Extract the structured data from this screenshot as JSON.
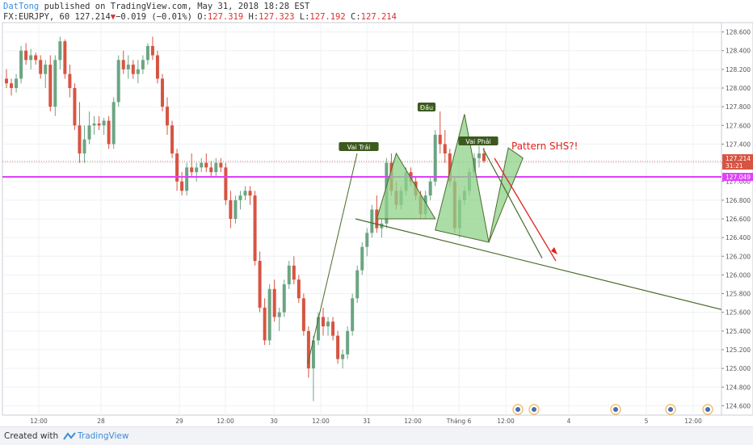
{
  "header": {
    "author": "DatTong",
    "published": "published on TradingView.com, May 31, 2018 18:28 EST",
    "symbol": "FX:EURJPY, 60",
    "last": "127.214",
    "change": "▼",
    "change_text": "−0.019 (−0.01%)",
    "o_label": "O:",
    "o_value": "127.319",
    "h_label": "H:",
    "h_value": "127.323",
    "l_label": "L:",
    "l_value": "127.192",
    "c_label": "C:",
    "c_value": "127.214"
  },
  "footer": {
    "created_with": "Created with",
    "brand": "TradingView"
  },
  "colors": {
    "up": "#6ba583",
    "down": "#d75442",
    "magenta": "#e040fb",
    "pattern_fill": "#8fd18a",
    "pattern_line": "#4a6b2a",
    "arrow": "#e0201c"
  },
  "chart_data": {
    "type": "candlestick",
    "ylim": [
      124.5,
      128.7
    ],
    "y_ticks": [
      "128.600",
      "128.400",
      "128.200",
      "128.000",
      "127.800",
      "127.600",
      "127.400",
      "127.200",
      "127.000",
      "126.800",
      "126.600",
      "126.400",
      "126.200",
      "126.000",
      "125.800",
      "125.600",
      "125.400",
      "125.200",
      "125.000",
      "124.800",
      "124.600"
    ],
    "x_ticks": [
      "12:00",
      "28",
      "29",
      "12:00",
      "30",
      "12:00",
      "31",
      "12:00",
      "Tháng 6",
      "12:00",
      "4",
      "5",
      "12:00"
    ],
    "price_labels": [
      "127.214",
      "31:21",
      "127.049"
    ],
    "horizontal_line": 127.049,
    "annotations": {
      "left_shoulder": "Vai Trái",
      "head": "Đầu",
      "right_shoulder": "Vai Phải",
      "pattern_text": "Pattern SHS?!"
    },
    "pattern_points": [
      [
        127.3,
        126.6
      ],
      [
        126.48,
        127.72
      ],
      [
        126.35,
        127.36
      ]
    ],
    "neckline": [
      126.6,
      125.63
    ],
    "candles": [
      [
        128.1,
        128.2,
        128.0,
        128.05
      ],
      [
        128.05,
        128.1,
        127.92,
        128.0
      ],
      [
        128.0,
        128.15,
        127.95,
        128.1
      ],
      [
        128.1,
        128.45,
        128.05,
        128.4
      ],
      [
        128.4,
        128.48,
        128.25,
        128.3
      ],
      [
        128.3,
        128.42,
        128.2,
        128.35
      ],
      [
        128.35,
        128.38,
        128.25,
        128.3
      ],
      [
        128.3,
        128.35,
        128.1,
        128.15
      ],
      [
        128.15,
        128.3,
        128.0,
        128.25
      ],
      [
        128.25,
        128.35,
        127.75,
        127.8
      ],
      [
        127.8,
        128.35,
        127.7,
        128.3
      ],
      [
        128.3,
        128.55,
        128.2,
        128.5
      ],
      [
        128.5,
        128.52,
        128.1,
        128.15
      ],
      [
        128.15,
        128.25,
        127.9,
        128.0
      ],
      [
        128.0,
        128.05,
        127.55,
        127.6
      ],
      [
        127.6,
        127.85,
        127.2,
        127.3
      ],
      [
        127.3,
        127.6,
        127.2,
        127.45
      ],
      [
        127.45,
        127.75,
        127.4,
        127.6
      ],
      [
        127.6,
        127.7,
        127.5,
        127.62
      ],
      [
        127.62,
        127.7,
        127.55,
        127.6
      ],
      [
        127.6,
        127.68,
        127.5,
        127.65
      ],
      [
        127.65,
        127.7,
        127.35,
        127.4
      ],
      [
        127.4,
        127.9,
        127.35,
        127.85
      ],
      [
        127.85,
        128.35,
        127.8,
        128.3
      ],
      [
        128.3,
        128.4,
        128.15,
        128.2
      ],
      [
        128.2,
        128.35,
        128.1,
        128.25
      ],
      [
        128.25,
        128.3,
        128.1,
        128.15
      ],
      [
        128.15,
        128.3,
        128.05,
        128.2
      ],
      [
        128.2,
        128.35,
        128.15,
        128.3
      ],
      [
        128.3,
        128.48,
        128.25,
        128.45
      ],
      [
        128.45,
        128.55,
        128.3,
        128.35
      ],
      [
        128.35,
        128.4,
        128.05,
        128.1
      ],
      [
        128.1,
        128.15,
        127.75,
        127.8
      ],
      [
        127.8,
        127.9,
        127.5,
        127.6
      ],
      [
        127.6,
        127.65,
        127.25,
        127.3
      ],
      [
        127.3,
        127.35,
        126.9,
        127.0
      ],
      [
        127.0,
        127.1,
        126.85,
        126.9
      ],
      [
        126.9,
        127.2,
        126.85,
        127.15
      ],
      [
        127.15,
        127.3,
        127.05,
        127.1
      ],
      [
        127.1,
        127.2,
        127.0,
        127.15
      ],
      [
        127.15,
        127.25,
        127.1,
        127.2
      ],
      [
        127.2,
        127.3,
        127.1,
        127.15
      ],
      [
        127.15,
        127.22,
        127.05,
        127.1
      ],
      [
        127.1,
        127.25,
        127.05,
        127.2
      ],
      [
        127.2,
        127.25,
        127.1,
        127.15
      ],
      [
        127.15,
        127.2,
        126.75,
        126.8
      ],
      [
        126.8,
        126.9,
        126.5,
        126.6
      ],
      [
        126.6,
        126.85,
        126.55,
        126.8
      ],
      [
        126.8,
        126.9,
        126.7,
        126.85
      ],
      [
        126.85,
        126.95,
        126.8,
        126.9
      ],
      [
        126.9,
        126.95,
        126.75,
        126.85
      ],
      [
        126.85,
        126.9,
        126.1,
        126.15
      ],
      [
        126.15,
        126.25,
        125.6,
        125.65
      ],
      [
        125.65,
        125.75,
        125.25,
        125.3
      ],
      [
        125.3,
        125.9,
        125.25,
        125.85
      ],
      [
        125.85,
        125.95,
        125.5,
        125.55
      ],
      [
        125.55,
        125.65,
        125.4,
        125.6
      ],
      [
        125.6,
        125.95,
        125.55,
        125.9
      ],
      [
        125.9,
        126.15,
        125.85,
        126.1
      ],
      [
        126.1,
        126.2,
        125.9,
        125.95
      ],
      [
        125.95,
        126.0,
        125.7,
        125.75
      ],
      [
        125.75,
        125.8,
        125.35,
        125.4
      ],
      [
        125.4,
        125.45,
        124.9,
        125.0
      ],
      [
        125.0,
        125.35,
        124.65,
        125.3
      ],
      [
        125.3,
        125.6,
        125.25,
        125.55
      ],
      [
        125.55,
        125.65,
        125.35,
        125.45
      ],
      [
        125.45,
        125.55,
        125.35,
        125.5
      ],
      [
        125.5,
        125.55,
        125.3,
        125.35
      ],
      [
        125.35,
        125.4,
        125.05,
        125.1
      ],
      [
        125.1,
        125.2,
        125.0,
        125.15
      ],
      [
        125.15,
        125.45,
        125.1,
        125.4
      ],
      [
        125.4,
        125.8,
        125.35,
        125.75
      ],
      [
        125.75,
        126.1,
        125.7,
        126.05
      ],
      [
        126.05,
        126.35,
        126.0,
        126.3
      ],
      [
        126.3,
        126.5,
        126.2,
        126.45
      ],
      [
        126.45,
        126.75,
        126.4,
        126.7
      ],
      [
        126.7,
        126.85,
        126.45,
        126.5
      ],
      [
        126.5,
        126.6,
        126.4,
        126.55
      ],
      [
        126.55,
        127.25,
        126.5,
        127.2
      ],
      [
        127.2,
        127.3,
        126.85,
        126.9
      ],
      [
        126.9,
        127.0,
        126.7,
        126.75
      ],
      [
        126.75,
        126.95,
        126.7,
        126.9
      ],
      [
        126.9,
        127.15,
        126.85,
        127.1
      ],
      [
        127.1,
        127.15,
        126.95,
        127.0
      ],
      [
        127.0,
        127.05,
        126.8,
        126.85
      ],
      [
        126.85,
        126.9,
        126.6,
        126.65
      ],
      [
        126.65,
        126.9,
        126.6,
        126.85
      ],
      [
        126.85,
        127.05,
        126.8,
        127.0
      ],
      [
        127.0,
        127.55,
        126.95,
        127.5
      ],
      [
        127.5,
        127.75,
        127.3,
        127.4
      ],
      [
        127.4,
        127.55,
        127.2,
        127.3
      ],
      [
        127.3,
        127.35,
        126.95,
        127.0
      ],
      [
        127.0,
        127.05,
        126.45,
        126.5
      ],
      [
        126.5,
        126.85,
        126.4,
        126.8
      ],
      [
        126.8,
        126.95,
        126.75,
        126.9
      ],
      [
        126.9,
        127.15,
        126.85,
        127.1
      ],
      [
        127.1,
        127.3,
        127.05,
        127.25
      ],
      [
        127.25,
        127.38,
        127.15,
        127.3
      ],
      [
        127.3,
        127.36,
        127.2,
        127.22
      ]
    ]
  }
}
